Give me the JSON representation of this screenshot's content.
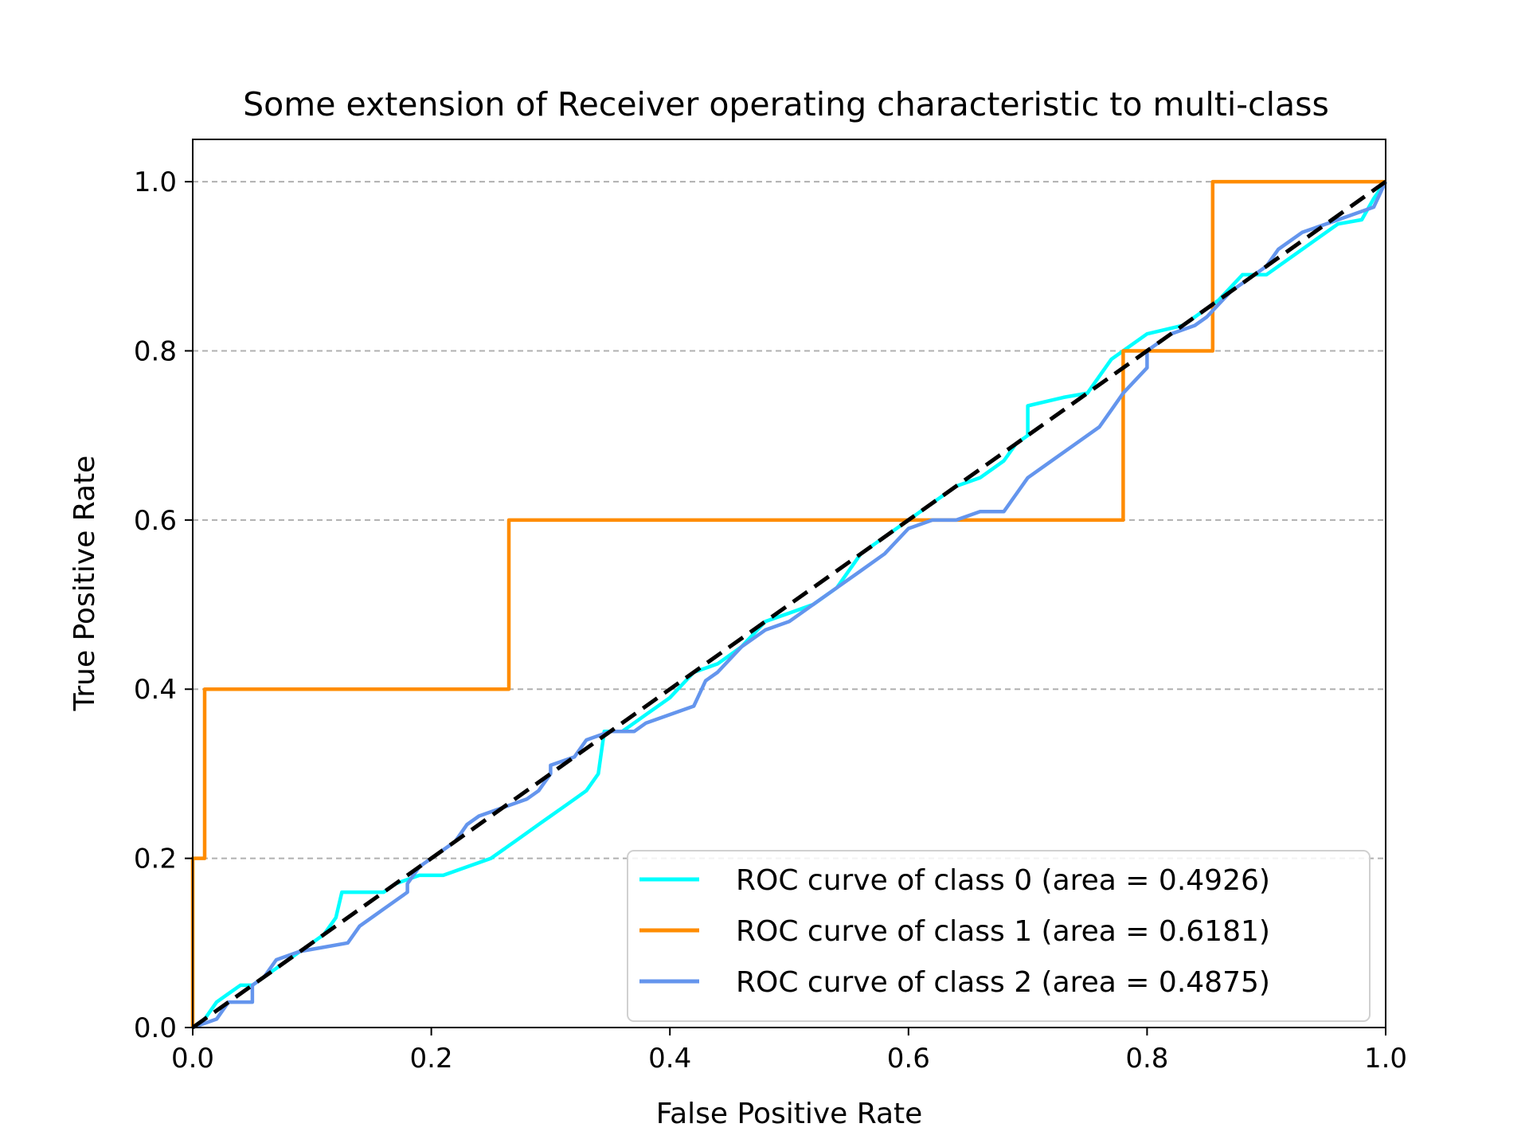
{
  "chart_data": {
    "type": "line",
    "title": "Some extension of Receiver operating characteristic to multi-class",
    "xlabel": "False Positive Rate",
    "ylabel": "True Positive Rate",
    "xlim": [
      0.0,
      1.0
    ],
    "ylim": [
      0.0,
      1.05
    ],
    "xticks": [
      "0.0",
      "0.2",
      "0.4",
      "0.6",
      "0.8",
      "1.0"
    ],
    "yticks": [
      "0.0",
      "0.2",
      "0.4",
      "0.6",
      "0.8",
      "1.0"
    ],
    "grid": "horizontal dashed",
    "legend_position": "lower-right",
    "series": [
      {
        "name": "ROC curve of class 0 (area = 0.4926)",
        "color": "#00FFFF",
        "points": [
          [
            0.0,
            0.0
          ],
          [
            0.01,
            0.01
          ],
          [
            0.02,
            0.03
          ],
          [
            0.03,
            0.04
          ],
          [
            0.04,
            0.05
          ],
          [
            0.05,
            0.05
          ],
          [
            0.06,
            0.06
          ],
          [
            0.07,
            0.07
          ],
          [
            0.08,
            0.08
          ],
          [
            0.09,
            0.09
          ],
          [
            0.1,
            0.1
          ],
          [
            0.11,
            0.11
          ],
          [
            0.12,
            0.13
          ],
          [
            0.125,
            0.16
          ],
          [
            0.16,
            0.16
          ],
          [
            0.17,
            0.17
          ],
          [
            0.19,
            0.18
          ],
          [
            0.21,
            0.18
          ],
          [
            0.23,
            0.19
          ],
          [
            0.25,
            0.2
          ],
          [
            0.26,
            0.21
          ],
          [
            0.27,
            0.22
          ],
          [
            0.28,
            0.23
          ],
          [
            0.29,
            0.24
          ],
          [
            0.3,
            0.25
          ],
          [
            0.31,
            0.26
          ],
          [
            0.32,
            0.27
          ],
          [
            0.33,
            0.28
          ],
          [
            0.34,
            0.3
          ],
          [
            0.345,
            0.35
          ],
          [
            0.36,
            0.35
          ],
          [
            0.37,
            0.36
          ],
          [
            0.38,
            0.37
          ],
          [
            0.4,
            0.39
          ],
          [
            0.42,
            0.42
          ],
          [
            0.44,
            0.43
          ],
          [
            0.46,
            0.45
          ],
          [
            0.48,
            0.48
          ],
          [
            0.5,
            0.49
          ],
          [
            0.52,
            0.5
          ],
          [
            0.54,
            0.52
          ],
          [
            0.56,
            0.56
          ],
          [
            0.58,
            0.58
          ],
          [
            0.6,
            0.6
          ],
          [
            0.62,
            0.62
          ],
          [
            0.64,
            0.64
          ],
          [
            0.66,
            0.65
          ],
          [
            0.68,
            0.67
          ],
          [
            0.69,
            0.69
          ],
          [
            0.7,
            0.7
          ],
          [
            0.7,
            0.735
          ],
          [
            0.73,
            0.745
          ],
          [
            0.75,
            0.75
          ],
          [
            0.76,
            0.77
          ],
          [
            0.77,
            0.79
          ],
          [
            0.78,
            0.8
          ],
          [
            0.8,
            0.82
          ],
          [
            0.83,
            0.83
          ],
          [
            0.84,
            0.84
          ],
          [
            0.86,
            0.86
          ],
          [
            0.88,
            0.89
          ],
          [
            0.9,
            0.89
          ],
          [
            0.92,
            0.91
          ],
          [
            0.94,
            0.93
          ],
          [
            0.96,
            0.95
          ],
          [
            0.98,
            0.955
          ],
          [
            0.99,
            0.98
          ],
          [
            1.0,
            1.0
          ]
        ]
      },
      {
        "name": "ROC curve of class 1 (area = 0.6181)",
        "color": "#FF8C00",
        "points": [
          [
            0.0,
            0.0
          ],
          [
            0.0,
            0.2
          ],
          [
            0.01,
            0.2
          ],
          [
            0.01,
            0.4
          ],
          [
            0.265,
            0.4
          ],
          [
            0.265,
            0.6
          ],
          [
            0.78,
            0.6
          ],
          [
            0.78,
            0.8
          ],
          [
            0.855,
            0.8
          ],
          [
            0.855,
            1.0
          ],
          [
            1.0,
            1.0
          ]
        ]
      },
      {
        "name": "ROC curve of class 2 (area = 0.4875)",
        "color": "#6495ED",
        "points": [
          [
            0.0,
            0.0
          ],
          [
            0.02,
            0.01
          ],
          [
            0.03,
            0.03
          ],
          [
            0.05,
            0.03
          ],
          [
            0.05,
            0.05
          ],
          [
            0.06,
            0.06
          ],
          [
            0.07,
            0.08
          ],
          [
            0.09,
            0.09
          ],
          [
            0.11,
            0.095
          ],
          [
            0.13,
            0.1
          ],
          [
            0.14,
            0.12
          ],
          [
            0.15,
            0.13
          ],
          [
            0.16,
            0.14
          ],
          [
            0.17,
            0.15
          ],
          [
            0.18,
            0.16
          ],
          [
            0.18,
            0.17
          ],
          [
            0.19,
            0.19
          ],
          [
            0.2,
            0.2
          ],
          [
            0.21,
            0.21
          ],
          [
            0.22,
            0.22
          ],
          [
            0.23,
            0.24
          ],
          [
            0.24,
            0.25
          ],
          [
            0.26,
            0.26
          ],
          [
            0.28,
            0.27
          ],
          [
            0.29,
            0.28
          ],
          [
            0.3,
            0.3
          ],
          [
            0.3,
            0.31
          ],
          [
            0.32,
            0.32
          ],
          [
            0.33,
            0.34
          ],
          [
            0.35,
            0.35
          ],
          [
            0.37,
            0.35
          ],
          [
            0.38,
            0.36
          ],
          [
            0.4,
            0.37
          ],
          [
            0.42,
            0.38
          ],
          [
            0.43,
            0.41
          ],
          [
            0.44,
            0.42
          ],
          [
            0.46,
            0.45
          ],
          [
            0.48,
            0.47
          ],
          [
            0.5,
            0.48
          ],
          [
            0.52,
            0.5
          ],
          [
            0.54,
            0.52
          ],
          [
            0.56,
            0.54
          ],
          [
            0.58,
            0.56
          ],
          [
            0.6,
            0.59
          ],
          [
            0.62,
            0.6
          ],
          [
            0.64,
            0.6
          ],
          [
            0.66,
            0.61
          ],
          [
            0.68,
            0.61
          ],
          [
            0.69,
            0.63
          ],
          [
            0.7,
            0.65
          ],
          [
            0.72,
            0.67
          ],
          [
            0.74,
            0.69
          ],
          [
            0.76,
            0.71
          ],
          [
            0.77,
            0.73
          ],
          [
            0.78,
            0.75
          ],
          [
            0.8,
            0.78
          ],
          [
            0.8,
            0.8
          ],
          [
            0.82,
            0.82
          ],
          [
            0.84,
            0.83
          ],
          [
            0.85,
            0.84
          ],
          [
            0.87,
            0.87
          ],
          [
            0.89,
            0.89
          ],
          [
            0.9,
            0.9
          ],
          [
            0.91,
            0.92
          ],
          [
            0.93,
            0.94
          ],
          [
            0.95,
            0.95
          ],
          [
            0.97,
            0.96
          ],
          [
            0.99,
            0.97
          ],
          [
            1.0,
            1.0
          ]
        ]
      },
      {
        "name": "",
        "color": "#000000",
        "style": "dashed",
        "points": [
          [
            0.0,
            0.0
          ],
          [
            1.0,
            1.0
          ]
        ]
      }
    ]
  }
}
